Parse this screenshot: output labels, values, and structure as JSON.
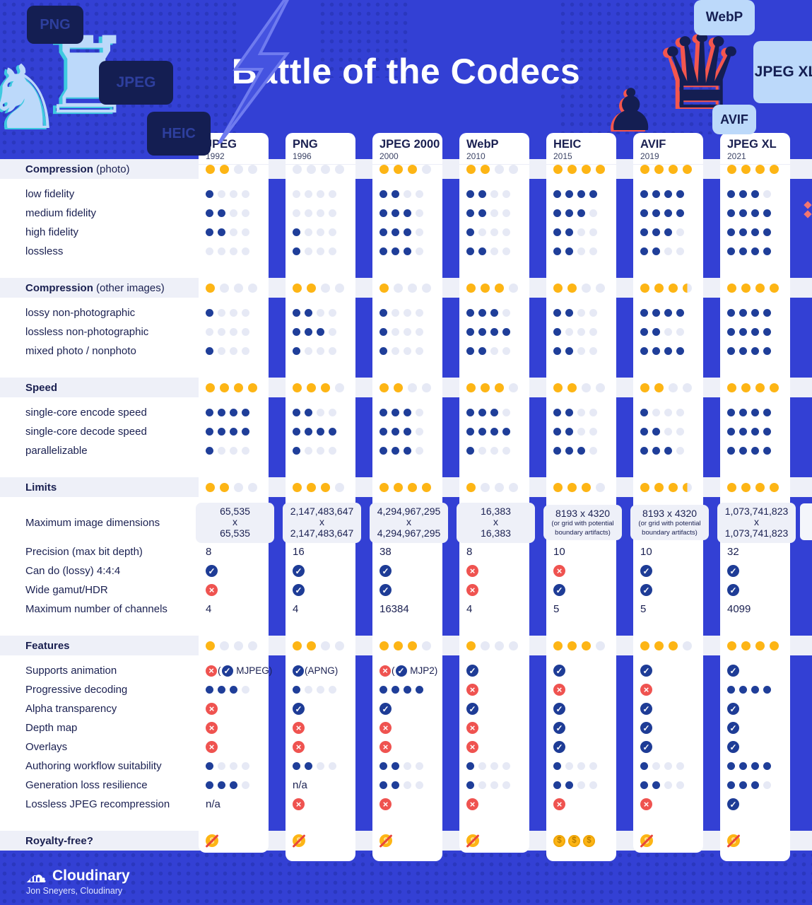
{
  "header": {
    "title": "Battle of the Codecs",
    "tags_left": [
      "PNG",
      "JPEG",
      "HEIC"
    ],
    "tags_right": [
      "WebP",
      "JPEG XL",
      "AVIF"
    ]
  },
  "chart_data": {
    "type": "table",
    "rating_scale": "0 to 4 dots (0.5 = half dot)",
    "columns": [
      {
        "name": "JPEG",
        "year": "1992"
      },
      {
        "name": "PNG",
        "year": "1996"
      },
      {
        "name": "JPEG 2000",
        "year": "2000"
      },
      {
        "name": "WebP",
        "year": "2010"
      },
      {
        "name": "HEIC",
        "year": "2015"
      },
      {
        "name": "AVIF",
        "year": "2019"
      },
      {
        "name": "JPEG XL",
        "year": "2021"
      }
    ],
    "sections": [
      {
        "label": "Compression",
        "suffix": " (photo)",
        "rating": [
          2,
          0,
          3,
          2,
          4,
          4,
          4
        ],
        "rows": [
          {
            "label": "low fidelity",
            "values": [
              1,
              0,
              2,
              2,
              4,
              4,
              3
            ]
          },
          {
            "label": "medium fidelity",
            "values": [
              2,
              0,
              3,
              2,
              3,
              4,
              4
            ]
          },
          {
            "label": "high fidelity",
            "values": [
              2,
              1,
              3,
              1,
              2,
              3,
              4
            ]
          },
          {
            "label": "lossless",
            "values": [
              0,
              1,
              3,
              2,
              2,
              2,
              4
            ]
          }
        ]
      },
      {
        "label": "Compression",
        "suffix": " (other images)",
        "rating": [
          1,
          2,
          1,
          3,
          2,
          3.5,
          4
        ],
        "rows": [
          {
            "label": "lossy non-photographic",
            "values": [
              1,
              2,
              1,
              3,
              2,
              4,
              4
            ]
          },
          {
            "label": "lossless non-photographic",
            "values": [
              0,
              3,
              1,
              4,
              1,
              2,
              4
            ]
          },
          {
            "label": "mixed photo / nonphoto",
            "values": [
              1,
              1,
              1,
              2,
              2,
              4,
              4
            ]
          }
        ]
      },
      {
        "label": "Speed",
        "suffix": "",
        "rating": [
          4,
          3,
          2,
          3,
          2,
          2,
          4
        ],
        "rows": [
          {
            "label": "single-core encode speed",
            "values": [
              4,
              2,
              3,
              3,
              2,
              1,
              4
            ]
          },
          {
            "label": "single-core decode speed",
            "values": [
              4,
              4,
              3,
              4,
              2,
              2,
              4
            ]
          },
          {
            "label": "parallelizable",
            "values": [
              1,
              1,
              3,
              1,
              3,
              3,
              4
            ]
          }
        ]
      },
      {
        "label": "Limits",
        "suffix": "",
        "rating": [
          2,
          3,
          4,
          1,
          3,
          3.5,
          4
        ],
        "rows": [
          {
            "label": "Maximum image dimensions",
            "tall": true,
            "values": [
              {
                "t": "dims",
                "lines": [
                  "65,535",
                  "x",
                  "65,535"
                ]
              },
              {
                "t": "dims",
                "lines": [
                  "2,147,483,647",
                  "x",
                  "2,147,483,647"
                ]
              },
              {
                "t": "dims",
                "lines": [
                  "4,294,967,295",
                  "x",
                  "4,294,967,295"
                ]
              },
              {
                "t": "dims",
                "lines": [
                  "16,383",
                  "x",
                  "16,383"
                ]
              },
              {
                "t": "dims",
                "lines": [
                  "8193 x 4320"
                ],
                "note": [
                  "(or grid with potential",
                  "boundary artifacts)"
                ]
              },
              {
                "t": "dims",
                "lines": [
                  "8193 x 4320"
                ],
                "note": [
                  "(or grid with potential",
                  "boundary artifacts)"
                ]
              },
              {
                "t": "dims",
                "lines": [
                  "1,073,741,823",
                  "x",
                  "1,073,741,823"
                ]
              }
            ]
          },
          {
            "label": "Precision (max bit depth)",
            "values": [
              "8",
              "16",
              "38",
              "8",
              "10",
              "10",
              "32"
            ]
          },
          {
            "label": "Can do (lossy) 4:4:4",
            "values": [
              "yes",
              "yes",
              "yes",
              "no",
              "no",
              "yes",
              "yes"
            ]
          },
          {
            "label": "Wide gamut/HDR",
            "values": [
              "no",
              "yes",
              "yes",
              "no",
              "yes",
              "yes",
              "yes"
            ]
          },
          {
            "label": "Maximum number of channels",
            "values": [
              "4",
              "4",
              "16384",
              "4",
              "5",
              "5",
              "4099"
            ]
          }
        ]
      },
      {
        "label": "Features",
        "suffix": "",
        "rating": [
          1,
          2,
          3,
          1,
          3,
          3,
          4
        ],
        "rows": [
          {
            "label": "Supports animation",
            "values": [
              {
                "t": "parts",
                "p": [
                  {
                    "i": "no"
                  },
                  {
                    "s": "("
                  },
                  {
                    "i": "yes"
                  },
                  {
                    "s": " MJPEG)"
                  }
                ]
              },
              {
                "t": "parts",
                "p": [
                  {
                    "i": "yes"
                  },
                  {
                    "s": "(APNG)"
                  }
                ]
              },
              {
                "t": "parts",
                "p": [
                  {
                    "i": "no"
                  },
                  {
                    "s": "("
                  },
                  {
                    "i": "yes"
                  },
                  {
                    "s": " MJP2)"
                  }
                ]
              },
              "yes",
              "yes",
              "yes",
              "yes"
            ]
          },
          {
            "label": "Progressive decoding",
            "values": [
              3,
              1,
              4,
              "no",
              "no",
              "no",
              4
            ]
          },
          {
            "label": "Alpha transparency",
            "values": [
              "no",
              "yes",
              "yes",
              "yes",
              "yes",
              "yes",
              "yes"
            ]
          },
          {
            "label": "Depth map",
            "values": [
              "no",
              "no",
              "no",
              "no",
              "yes",
              "yes",
              "yes"
            ]
          },
          {
            "label": "Overlays",
            "values": [
              "no",
              "no",
              "no",
              "no",
              "yes",
              "yes",
              "yes"
            ]
          },
          {
            "label": "Authoring workflow suitability",
            "values": [
              1,
              2,
              2,
              1,
              1,
              1,
              4
            ]
          },
          {
            "label": "Generation loss resilience",
            "values": [
              3,
              "na",
              2,
              1,
              2,
              2,
              3
            ]
          },
          {
            "label": "Lossless JPEG recompression",
            "values": [
              "na",
              "no",
              "no",
              "no",
              "no",
              "no",
              "yes"
            ]
          }
        ]
      },
      {
        "label": "Royalty-free?",
        "suffix": "",
        "royalty": [
          "free",
          "free",
          "free",
          "free",
          "paid",
          "free",
          "free"
        ],
        "rows": []
      }
    ],
    "value_legend": {
      "yes": "check-icon",
      "no": "cross-icon",
      "na": "n/a",
      "free": "crossed-dollar-icon (royalty-free)",
      "paid": "three-dollar-coins-icon (royalties apply)"
    }
  },
  "footer": {
    "logo": "Cloudinary",
    "credit": "Jon Sneyers, Cloudinary"
  },
  "colors": {
    "background": "#3340d4",
    "navy": "#141e52",
    "light_blue": "#bcd9fa",
    "coral": "#f4564e",
    "yellow_dot": "#fdb515",
    "blue_dot": "#1f3e99",
    "empty_dot": "#e6e9f5",
    "band": "#eef0f8",
    "check": "#1e3c96",
    "cross": "#ef5350"
  }
}
